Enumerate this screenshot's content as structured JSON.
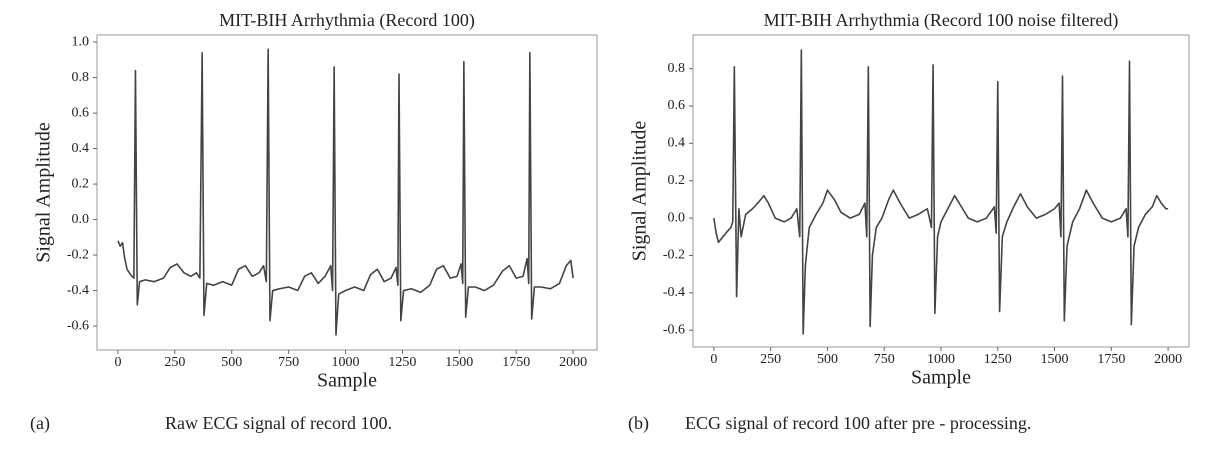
{
  "chart_data": [
    {
      "type": "line",
      "title": "MIT-BIH Arrhythmia (Record 100)",
      "xlabel": "Sample",
      "ylabel": "Signal Amplitude",
      "color": "#444444",
      "xlim": [
        -92,
        2105
      ],
      "ylim": [
        -0.735,
        1.04
      ],
      "xticks": [
        0,
        250,
        500,
        750,
        1000,
        1250,
        1500,
        1750,
        2000
      ],
      "yticks": [
        -0.6,
        -0.4,
        -0.2,
        {
          "value": 0,
          "label": "0.0"
        },
        0.2,
        0.4,
        0.6,
        0.8,
        {
          "value": 1,
          "label": "1.0"
        }
      ],
      "x": [
        0,
        10,
        20,
        30,
        40,
        55,
        70,
        77,
        85,
        95,
        120,
        160,
        200,
        230,
        260,
        290,
        320,
        345,
        360,
        370,
        378,
        390,
        420,
        460,
        500,
        530,
        560,
        590,
        620,
        640,
        652,
        660,
        668,
        680,
        710,
        750,
        790,
        820,
        850,
        880,
        910,
        935,
        943,
        950,
        958,
        970,
        1000,
        1040,
        1080,
        1110,
        1140,
        1170,
        1200,
        1222,
        1230,
        1235,
        1243,
        1255,
        1290,
        1330,
        1370,
        1400,
        1430,
        1460,
        1490,
        1508,
        1515,
        1520,
        1528,
        1540,
        1570,
        1610,
        1650,
        1690,
        1720,
        1750,
        1780,
        1798,
        1805,
        1810,
        1818,
        1830,
        1860,
        1900,
        1940,
        1970,
        1990,
        2000
      ],
      "values": [
        -0.12,
        -0.15,
        -0.13,
        -0.22,
        -0.28,
        -0.31,
        -0.33,
        0.84,
        -0.48,
        -0.35,
        -0.34,
        -0.35,
        -0.33,
        -0.27,
        -0.25,
        -0.3,
        -0.32,
        -0.3,
        -0.33,
        0.94,
        -0.54,
        -0.36,
        -0.37,
        -0.35,
        -0.37,
        -0.28,
        -0.26,
        -0.32,
        -0.3,
        -0.26,
        -0.35,
        0.96,
        -0.57,
        -0.4,
        -0.39,
        -0.38,
        -0.4,
        -0.32,
        -0.3,
        -0.36,
        -0.32,
        -0.26,
        -0.4,
        0.86,
        -0.65,
        -0.42,
        -0.4,
        -0.38,
        -0.4,
        -0.31,
        -0.28,
        -0.35,
        -0.33,
        -0.27,
        -0.37,
        0.82,
        -0.57,
        -0.4,
        -0.39,
        -0.41,
        -0.37,
        -0.28,
        -0.26,
        -0.33,
        -0.32,
        -0.25,
        -0.36,
        0.89,
        -0.55,
        -0.38,
        -0.38,
        -0.4,
        -0.37,
        -0.29,
        -0.26,
        -0.33,
        -0.32,
        -0.22,
        -0.36,
        0.94,
        -0.56,
        -0.38,
        -0.38,
        -0.39,
        -0.36,
        -0.26,
        -0.23,
        -0.33
      ]
    },
    {
      "type": "line",
      "title": "MIT-BIH Arrhythmia (Record 100 noise filtered)",
      "xlabel": "Sample",
      "ylabel": "Signal Amplitude",
      "color": "#444444",
      "xlim": [
        -92,
        2092
      ],
      "ylim": [
        -0.69,
        0.98
      ],
      "xticks": [
        0,
        250,
        500,
        750,
        1000,
        1250,
        1500,
        1750,
        2000
      ],
      "yticks": [
        -0.6,
        -0.4,
        -0.2,
        {
          "value": 0,
          "label": "0.0"
        },
        0.2,
        0.4,
        0.6,
        0.8
      ],
      "x": [
        0,
        10,
        20,
        40,
        60,
        75,
        83,
        90,
        100,
        110,
        120,
        140,
        170,
        200,
        220,
        240,
        270,
        310,
        340,
        365,
        378,
        385,
        393,
        403,
        420,
        450,
        480,
        500,
        530,
        560,
        600,
        640,
        665,
        673,
        680,
        688,
        698,
        715,
        740,
        770,
        790,
        820,
        860,
        900,
        940,
        958,
        965,
        973,
        985,
        1000,
        1030,
        1060,
        1090,
        1120,
        1160,
        1200,
        1235,
        1243,
        1250,
        1258,
        1270,
        1290,
        1320,
        1350,
        1380,
        1420,
        1460,
        1500,
        1520,
        1528,
        1535,
        1543,
        1555,
        1580,
        1610,
        1640,
        1670,
        1710,
        1750,
        1790,
        1815,
        1823,
        1830,
        1838,
        1850,
        1870,
        1900,
        1930,
        1950,
        1970,
        1990,
        2000
      ],
      "values": [
        0.0,
        -0.08,
        -0.13,
        -0.1,
        -0.07,
        -0.05,
        -0.02,
        0.81,
        -0.42,
        0.05,
        -0.1,
        0.02,
        0.05,
        0.09,
        0.12,
        0.08,
        0.0,
        -0.02,
        0.0,
        0.05,
        -0.1,
        0.9,
        -0.62,
        -0.25,
        -0.05,
        0.02,
        0.08,
        0.15,
        0.1,
        0.03,
        0.0,
        0.02,
        0.08,
        -0.1,
        0.81,
        -0.58,
        -0.2,
        -0.05,
        0.0,
        0.1,
        0.15,
        0.08,
        0.0,
        0.02,
        0.05,
        -0.05,
        0.82,
        -0.51,
        -0.1,
        -0.02,
        0.05,
        0.12,
        0.06,
        0.0,
        -0.02,
        0.0,
        0.06,
        -0.08,
        0.73,
        -0.5,
        -0.1,
        -0.02,
        0.06,
        0.13,
        0.06,
        0.0,
        0.02,
        0.05,
        0.08,
        -0.1,
        0.76,
        -0.55,
        -0.15,
        -0.02,
        0.05,
        0.15,
        0.08,
        0.0,
        -0.02,
        0.0,
        0.05,
        -0.1,
        0.84,
        -0.57,
        -0.15,
        -0.05,
        0.02,
        0.06,
        0.12,
        0.08,
        0.05,
        0.05
      ]
    }
  ],
  "captions": [
    {
      "label": "(a)",
      "text": "Raw ECG signal of record 100."
    },
    {
      "label": "(b)",
      "text": "ECG signal of record 100 after pre - processing."
    }
  ]
}
